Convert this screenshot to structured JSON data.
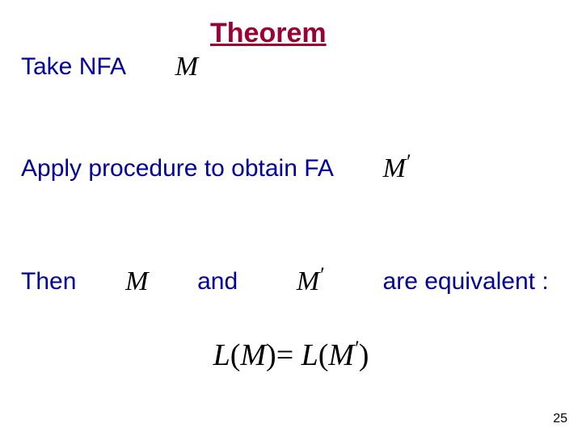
{
  "colors": {
    "title": "#990033",
    "body": "#000099",
    "math": "#000000",
    "pagenum": "#000000",
    "background": "#ffffff"
  },
  "fontsizes": {
    "title_pt": 34,
    "body_pt": 30,
    "math_pt": 34,
    "eq_pt": 38,
    "pagenum_pt": 16
  },
  "title": "Theorem",
  "line1": {
    "text1": "Take NFA",
    "sym1": "M"
  },
  "line2": {
    "text1": "Apply procedure to obtain FA",
    "sym1": "M",
    "prime1": "′"
  },
  "line3": {
    "text1": "Then",
    "sym1": "M",
    "text2": "and",
    "sym2": "M",
    "prime2": "′",
    "text3": "are equivalent :"
  },
  "equation": {
    "L1": "L",
    "open1": "(",
    "M1": "M",
    "close1": ")",
    "eq": "=",
    "L2": "L",
    "open2": "(",
    "M2": "M",
    "prime": "′",
    "close2": ")"
  },
  "pagenum": "25"
}
